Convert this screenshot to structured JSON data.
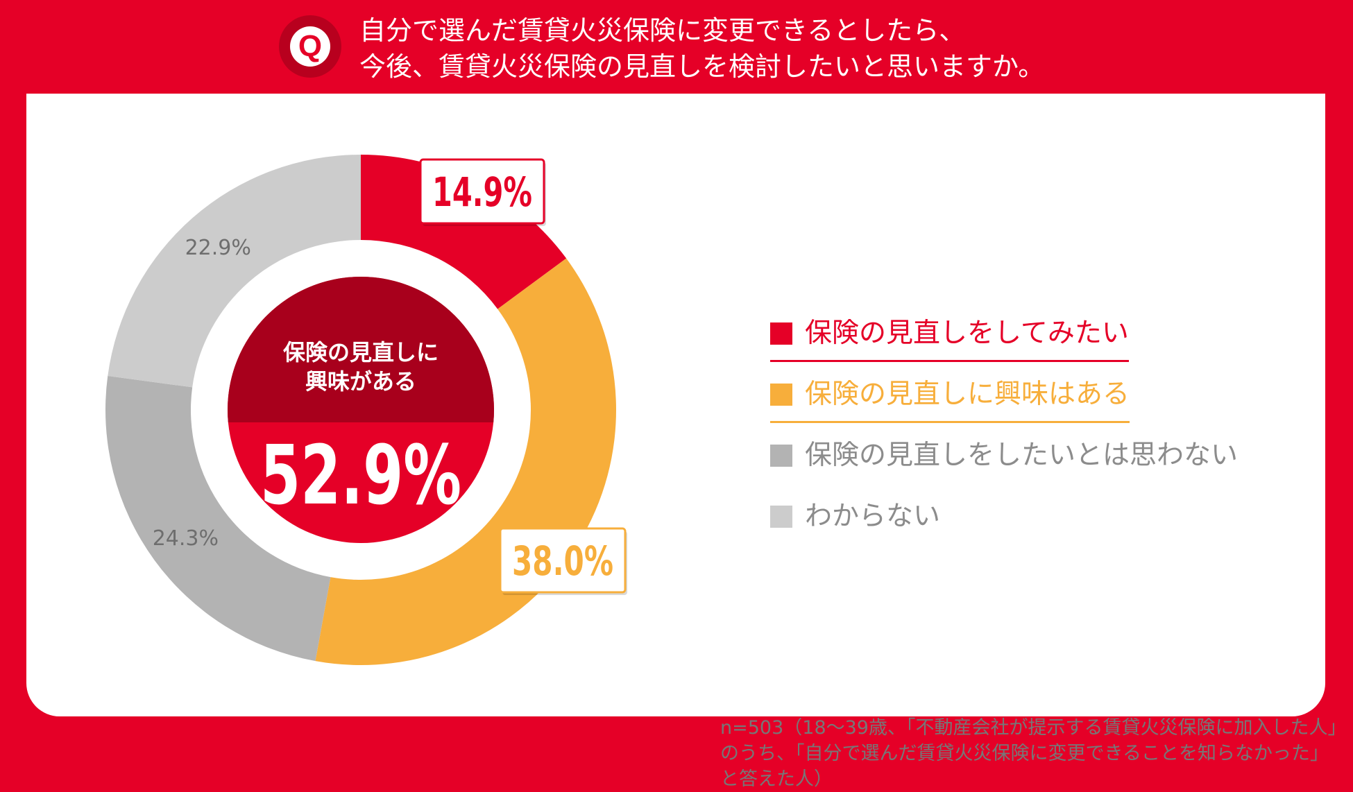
{
  "header": {
    "badge_letter": "Q",
    "question_line1": "自分で選んだ賃貸火災保険に変更できるとしたら、",
    "question_line2": "今後、賃貸火災保険の見直しを検討したいと思いますか。"
  },
  "colors": {
    "red": "#E50027",
    "dark_red": "#A8001C",
    "orange": "#F7AE3B",
    "gray": "#B3B3B3",
    "light_gray": "#CCCCCC"
  },
  "chart_data": {
    "type": "pie",
    "variant": "donut",
    "categories": [
      "保険の見直しをしてみたい",
      "保険の見直しに興味はある",
      "保険の見直しをしたいとは思わない",
      "わからない"
    ],
    "values": [
      14.9,
      38.0,
      24.3,
      22.9
    ],
    "value_labels": [
      "14.9%",
      "38.0%",
      "24.3%",
      "22.9%"
    ],
    "series_colors": [
      "#E50027",
      "#F7AE3B",
      "#B3B3B3",
      "#CCCCCC"
    ],
    "center_label": "保険の見直しに\n興味がある",
    "center_label_line1": "保険の見直しに",
    "center_label_line2": "興味がある",
    "center_value": "52.9%",
    "legend_position": "right"
  },
  "note": {
    "line1": "n=503（18～39歳、「不動産会社が提示する賃貸火災保険に加入した人」",
    "line2": "のうち、「自分で選んだ賃貸火災保険に変更できることを知らなかった」",
    "line3": "と答えた人）"
  }
}
